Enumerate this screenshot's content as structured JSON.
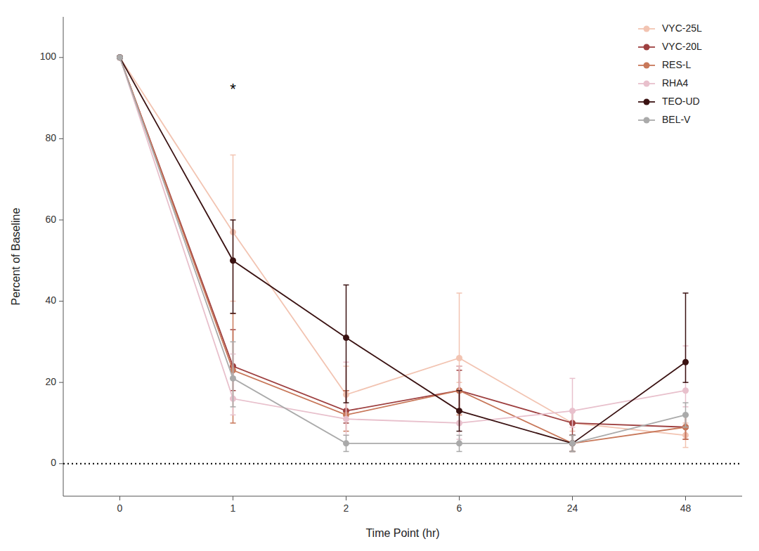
{
  "chart_data": {
    "type": "line",
    "xlabel": "Time Point (hr)",
    "ylabel": "Percent of Baseline",
    "categories": [
      "0",
      "1",
      "2",
      "6",
      "24",
      "48"
    ],
    "series": [
      {
        "name": "VYC-25L",
        "color": "#f2c4b2",
        "marker": "circle",
        "values": [
          100,
          57,
          17,
          26,
          10,
          7
        ],
        "error_low": [
          0,
          17,
          6,
          6,
          2,
          3
        ],
        "error_high": [
          0,
          19,
          7,
          16,
          3,
          3
        ]
      },
      {
        "name": "VYC-20L",
        "color": "#9e4040",
        "marker": "circle",
        "values": [
          100,
          24,
          13,
          18,
          10,
          9
        ],
        "error_low": [
          0,
          6,
          3,
          5,
          3,
          3
        ],
        "error_high": [
          0,
          9,
          5,
          5,
          3,
          3
        ]
      },
      {
        "name": "RES-L",
        "color": "#c8785a",
        "marker": "circle",
        "values": [
          100,
          23,
          12,
          18,
          5,
          9
        ],
        "error_low": [
          0,
          13,
          4,
          6,
          2,
          3
        ],
        "error_high": [
          0,
          14,
          6,
          6,
          2,
          3
        ]
      },
      {
        "name": "RHA4",
        "color": "#e8c0cc",
        "marker": "circle",
        "values": [
          100,
          16,
          11,
          10,
          13,
          18
        ],
        "error_low": [
          0,
          4,
          4,
          4,
          4,
          4
        ],
        "error_high": [
          0,
          11,
          14,
          14,
          8,
          11
        ]
      },
      {
        "name": "TEO-UD",
        "color": "#3a1212",
        "marker": "circle",
        "values": [
          100,
          50,
          31,
          13,
          5,
          25
        ],
        "error_low": [
          0,
          13,
          16,
          5,
          2,
          5
        ],
        "error_high": [
          0,
          10,
          13,
          5,
          2,
          17
        ]
      },
      {
        "name": "BEL-V",
        "color": "#aaaaaa",
        "marker": "circle",
        "values": [
          100,
          21,
          5,
          5,
          5,
          12
        ],
        "error_low": [
          0,
          7,
          2,
          2,
          2,
          3
        ],
        "error_high": [
          0,
          9,
          2,
          2,
          2,
          3
        ]
      }
    ],
    "annotations": [
      {
        "text": "*",
        "category": "1",
        "y": 91
      }
    ],
    "hlines": [
      {
        "y": 0,
        "line_style": "dotted"
      }
    ],
    "ylim": [
      -8,
      110
    ],
    "yticks": [
      0,
      20,
      40,
      60,
      80,
      100
    ],
    "grid": false,
    "legend": "upper right"
  }
}
